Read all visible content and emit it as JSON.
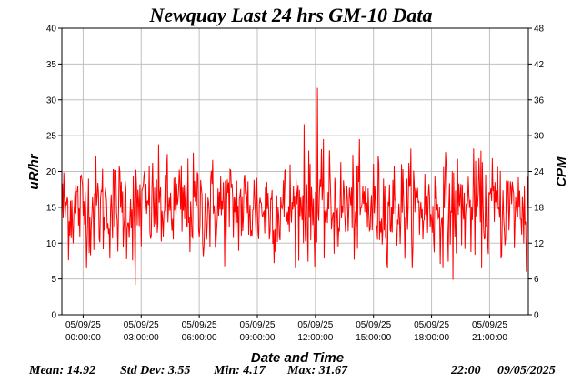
{
  "chart_data": {
    "type": "line",
    "title": "Newquay Last 24 hrs  GM-10 Data",
    "xlabel": "Date and Time",
    "ylabel": "uR/hr",
    "ylabel_right": "CPM",
    "ylim": [
      0,
      40
    ],
    "ylim_right": [
      0,
      48
    ],
    "y_ticks": [
      0,
      5,
      10,
      15,
      20,
      25,
      30,
      35,
      40
    ],
    "y_ticks_right": [
      0,
      6,
      12,
      18,
      24,
      30,
      36,
      42,
      48
    ],
    "grid": true,
    "x_tick_labels": [
      {
        "date": "05/09/25",
        "time": "00:00:00"
      },
      {
        "date": "05/09/25",
        "time": "03:00:00"
      },
      {
        "date": "05/09/25",
        "time": "06:00:00"
      },
      {
        "date": "05/09/25",
        "time": "09:00:00"
      },
      {
        "date": "05/09/25",
        "time": "12:00:00"
      },
      {
        "date": "05/09/25",
        "time": "15:00:00"
      },
      {
        "date": "05/09/25",
        "time": "18:00:00"
      },
      {
        "date": "05/09/25",
        "time": "21:00:00"
      }
    ],
    "x_range_hours": [
      -1.1,
      23.0
    ],
    "series": [
      {
        "color": "#ff0000",
        "notable_points": [
          {
            "hour": 2.7,
            "value": 4.17
          },
          {
            "hour": 12.1,
            "value": 31.67
          },
          {
            "hour": 11.4,
            "value": 26.6
          },
          {
            "hour": 19.1,
            "value": 4.9
          },
          {
            "hour": 22.9,
            "value": 6.0
          }
        ]
      }
    ],
    "stats": {
      "mean": "Mean: 14.92",
      "std_dev": "Std Dev: 3.55",
      "min": "Min: 4.17",
      "max": "Max: 31.67",
      "time": "22:00",
      "date": "09/05/2025"
    }
  }
}
